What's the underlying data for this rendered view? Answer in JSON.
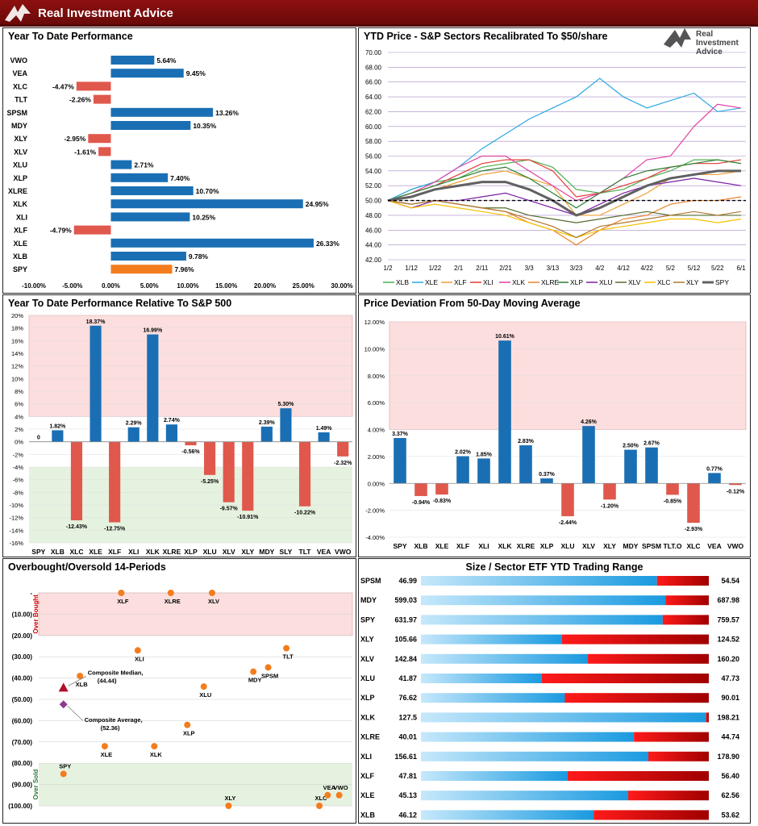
{
  "header": {
    "brand": "Real Investment Advice"
  },
  "colors": {
    "blue": "#1a6fb4",
    "red": "#e0584c",
    "orange": "#f37d1d",
    "dark_red": "#8e1010"
  },
  "watermark": {
    "line1": "Real",
    "line2": "Investment",
    "line3": "Advice"
  },
  "chart_data": [
    {
      "id": "ytd_performance",
      "type": "bar",
      "orientation": "horizontal",
      "title": "Year To Date Performance",
      "categories": [
        "VWO",
        "VEA",
        "XLC",
        "TLT",
        "SPSM",
        "MDY",
        "XLY",
        "XLV",
        "XLU",
        "XLP",
        "XLRE",
        "XLK",
        "XLI",
        "XLF",
        "XLE",
        "XLB",
        "SPY"
      ],
      "values": [
        5.64,
        9.45,
        -4.47,
        -2.26,
        13.26,
        10.35,
        -2.95,
        -1.61,
        2.71,
        7.4,
        10.7,
        24.95,
        10.25,
        -4.79,
        26.33,
        9.78,
        7.96
      ],
      "labels": [
        "5.64%",
        "9.45%",
        "-4.47%",
        "-2.26%",
        "13.26%",
        "10.35%",
        "-2.95%",
        "-1.61%",
        "2.71%",
        "7.40%",
        "10.70%",
        "24.95%",
        "10.25%",
        "-4.79%",
        "26.33%",
        "9.78%",
        "7.96%"
      ],
      "xlim": [
        -10,
        30
      ],
      "xticks": [
        "-10.00%",
        "-5.00%",
        "0.00%",
        "5.00%",
        "10.00%",
        "15.00%",
        "20.00%",
        "25.00%",
        "30.00%"
      ]
    },
    {
      "id": "ytd_price_sectors",
      "type": "line",
      "title": "YTD Price - S&P Sectors Recalibrated To $50/share",
      "x": [
        "1/2",
        "1/12",
        "1/22",
        "2/1",
        "2/11",
        "2/21",
        "3/3",
        "3/13",
        "3/23",
        "4/2",
        "4/12",
        "4/22",
        "5/2",
        "5/12",
        "5/22",
        "6/1"
      ],
      "ylim": [
        42,
        70
      ],
      "yticks": [
        "70.00",
        "68.00",
        "66.00",
        "64.00",
        "62.00",
        "60.00",
        "58.00",
        "56.00",
        "54.00",
        "52.00",
        "50.00",
        "48.00",
        "46.00",
        "44.00",
        "42.00"
      ],
      "reference_line": 50,
      "series": [
        {
          "name": "XLB",
          "color": "#4caf50",
          "values": [
            50,
            51.5,
            52.5,
            53,
            54.5,
            55,
            55.5,
            54.5,
            51.5,
            51,
            51.5,
            53,
            54,
            55.5,
            55.5,
            55
          ]
        },
        {
          "name": "XLE",
          "color": "#29a8e0",
          "values": [
            50,
            51.5,
            52.5,
            54.5,
            57,
            59,
            61,
            62.5,
            64,
            66.5,
            64,
            62.5,
            63.5,
            64.5,
            62,
            62.5
          ]
        },
        {
          "name": "XLF",
          "color": "#f0a030",
          "values": [
            50,
            50.5,
            51.5,
            52.5,
            53.5,
            54,
            53,
            52,
            48,
            48,
            49.5,
            51,
            53,
            53.5,
            53.5,
            54
          ]
        },
        {
          "name": "XLI",
          "color": "#e53935",
          "values": [
            50,
            51,
            52,
            53.5,
            55,
            55.5,
            55.5,
            54,
            50.5,
            51,
            52,
            53,
            54.5,
            55,
            55,
            55.5
          ]
        },
        {
          "name": "XLK",
          "color": "#e040a0",
          "values": [
            50,
            51,
            52.5,
            54.5,
            56,
            56,
            54,
            52,
            50,
            51,
            53,
            55.5,
            56,
            60,
            63,
            62.5
          ]
        },
        {
          "name": "XLRE",
          "color": "#e8842a",
          "values": [
            50,
            49.5,
            50,
            49.5,
            49,
            48.5,
            47,
            46,
            44,
            46,
            47.5,
            48,
            49.5,
            50,
            50,
            50.5
          ]
        },
        {
          "name": "XLP",
          "color": "#2e7d32",
          "values": [
            50,
            51,
            52,
            53,
            54,
            54.5,
            53,
            51,
            49,
            51,
            53,
            54,
            54.5,
            55,
            55.5,
            55
          ]
        },
        {
          "name": "XLU",
          "color": "#7b1fa2",
          "values": [
            50,
            49,
            50,
            50,
            50.5,
            51,
            50,
            49,
            48,
            49.5,
            51,
            52,
            52.5,
            53,
            52.5,
            52
          ]
        },
        {
          "name": "XLV",
          "color": "#556b2f",
          "values": [
            50,
            49.5,
            50,
            49.5,
            49,
            49,
            48,
            47.5,
            47,
            47.5,
            48,
            48.5,
            48,
            48,
            48,
            48
          ]
        },
        {
          "name": "XLC",
          "color": "#f5c000",
          "values": [
            50,
            49,
            49.5,
            49,
            48.5,
            48,
            47,
            46,
            45,
            46,
            46.5,
            47,
            47.5,
            47.5,
            47,
            47.5
          ]
        },
        {
          "name": "XLY",
          "color": "#b07830",
          "values": [
            50,
            49.5,
            50,
            49.5,
            49,
            48.5,
            47.5,
            46.5,
            45,
            46.5,
            47,
            47.5,
            48,
            48.5,
            48,
            48.5
          ]
        },
        {
          "name": "SPY",
          "color": "#606060",
          "values": [
            50,
            50.5,
            51.5,
            52,
            52.5,
            52.5,
            51.5,
            50,
            48,
            49,
            50.5,
            52,
            53,
            53.5,
            54,
            54
          ]
        }
      ]
    },
    {
      "id": "relative_to_sp500",
      "type": "bar",
      "title": "Year To Date Performance Relative To S&P 500",
      "categories": [
        "SPY",
        "XLB",
        "XLC",
        "XLE",
        "XLF",
        "XLI",
        "XLK",
        "XLRE",
        "XLP",
        "XLU",
        "XLV",
        "XLY",
        "MDY",
        "SLY",
        "TLT",
        "VEA",
        "VWO"
      ],
      "values": [
        0,
        1.82,
        -12.43,
        18.37,
        -12.75,
        2.29,
        16.99,
        2.74,
        -0.56,
        -5.25,
        -9.57,
        -10.91,
        2.39,
        5.3,
        -10.22,
        1.49,
        -2.32
      ],
      "labels": [
        "0",
        "1.82%",
        "-12.43%",
        "18.37%",
        "-12.75%",
        "2.29%",
        "16.99%",
        "2.74%",
        "-0.56%",
        "-5.25%",
        "-9.57%",
        "-10.91%",
        "2.39%",
        "5.30%",
        "-10.22%",
        "1.49%",
        "-2.32%"
      ],
      "ylim": [
        -16,
        20
      ],
      "yticks": [
        "20%",
        "18%",
        "16%",
        "14%",
        "12%",
        "10%",
        "8%",
        "6%",
        "4%",
        "2%",
        "0%",
        "-2%",
        "-4%",
        "-6%",
        "-8%",
        "-10%",
        "-12%",
        "-14%",
        "-16%"
      ],
      "bands": {
        "overbought_from": 4,
        "oversold_below": -4
      }
    },
    {
      "id": "deviation_50dma",
      "type": "bar",
      "title": "Price Deviation From 50-Day Moving Average",
      "categories": [
        "SPY",
        "XLB",
        "XLE",
        "XLF",
        "XLI",
        "XLK",
        "XLRE",
        "XLP",
        "XLU",
        "XLV",
        "XLY",
        "MDY",
        "SPSM",
        "TLT.O",
        "XLC",
        "VEA",
        "VWO"
      ],
      "values": [
        3.37,
        -0.94,
        -0.83,
        2.02,
        1.85,
        10.61,
        2.83,
        0.37,
        -2.44,
        4.26,
        -1.2,
        2.5,
        2.67,
        -0.85,
        -2.93,
        0.77,
        -0.12
      ],
      "labels": [
        "3.37%",
        "-0.94%",
        "-0.83%",
        "2.02%",
        "1.85%",
        "10.61%",
        "2.83%",
        "0.37%",
        "-2.44%",
        "4.26%",
        "-1.20%",
        "2.50%",
        "2.67%",
        "-0.85%",
        "-2.93%",
        "0.77%",
        "-0.12%"
      ],
      "ylim": [
        -4,
        12
      ],
      "yticks": [
        "12.00%",
        "10.00%",
        "8.00%",
        "6.00%",
        "4.00%",
        "2.00%",
        "0.00%",
        "-2.00%",
        "-4.00%"
      ],
      "bands": {
        "overbought_from": 4
      }
    },
    {
      "id": "overbought_oversold",
      "type": "scatter",
      "title": "Overbought/Oversold 14-Periods",
      "yticks": [
        "-",
        "(10.00)",
        "(20.00)",
        "(30.00)",
        "(40.00)",
        "(50.00)",
        "(60.00)",
        "(70.00)",
        "(80.00)",
        "(90.00)",
        "(100.00)"
      ],
      "ylim": [
        -100,
        0
      ],
      "band_labels": {
        "top": "Over Bought",
        "bottom": "Over Sold"
      },
      "points": [
        {
          "name": "SPY",
          "x": 1.5,
          "y": -85
        },
        {
          "name": "XLB",
          "x": 2.5,
          "y": -39
        },
        {
          "name": "XLE",
          "x": 4,
          "y": -72
        },
        {
          "name": "XLF",
          "x": 5,
          "y": 0
        },
        {
          "name": "XLI",
          "x": 6,
          "y": -27
        },
        {
          "name": "XLK",
          "x": 7,
          "y": -72
        },
        {
          "name": "XLRE",
          "x": 8,
          "y": 0
        },
        {
          "name": "XLP",
          "x": 9,
          "y": -62
        },
        {
          "name": "XLU",
          "x": 10,
          "y": -44
        },
        {
          "name": "XLV",
          "x": 10.5,
          "y": 0
        },
        {
          "name": "XLY",
          "x": 11.5,
          "y": -100
        },
        {
          "name": "MDY",
          "x": 13,
          "y": -37
        },
        {
          "name": "SPSM",
          "x": 13.9,
          "y": -35
        },
        {
          "name": "TLT",
          "x": 15,
          "y": -26
        },
        {
          "name": "XLC",
          "x": 17,
          "y": -100
        },
        {
          "name": "VEA",
          "x": 17.5,
          "y": -95
        },
        {
          "name": "VWO",
          "x": 18.2,
          "y": -95
        }
      ],
      "median": {
        "label": "Composite Median,",
        "value_label": "(44.44)",
        "x": 1.5,
        "y": -44.44
      },
      "average": {
        "label": "Composite Average,",
        "value_label": "(52.36)",
        "x": 1.5,
        "y": -52.36
      }
    },
    {
      "id": "trading_range",
      "type": "bar",
      "title": "Size / Sector ETF YTD Trading Range",
      "rows": [
        {
          "name": "SPSM",
          "low": "46.99",
          "high": "54.54",
          "position": 0.82
        },
        {
          "name": "MDY",
          "low": "599.03",
          "high": "687.98",
          "position": 0.85
        },
        {
          "name": "SPY",
          "low": "631.97",
          "high": "759.57",
          "position": 0.84
        },
        {
          "name": "XLY",
          "low": "105.66",
          "high": "124.52",
          "position": 0.49
        },
        {
          "name": "XLV",
          "low": "142.84",
          "high": "160.20",
          "position": 0.58
        },
        {
          "name": "XLU",
          "low": "41.87",
          "high": "47.73",
          "position": 0.42
        },
        {
          "name": "XLP",
          "low": "76.62",
          "high": "90.01",
          "position": 0.5
        },
        {
          "name": "XLK",
          "low": "127.5",
          "high": "198.21",
          "position": 0.99
        },
        {
          "name": "XLRE",
          "low": "40.01",
          "high": "44.74",
          "position": 0.74
        },
        {
          "name": "XLI",
          "low": "156.61",
          "high": "178.90",
          "position": 0.79
        },
        {
          "name": "XLF",
          "low": "47.81",
          "high": "56.40",
          "position": 0.51
        },
        {
          "name": "XLE",
          "low": "45.13",
          "high": "62.56",
          "position": 0.72
        },
        {
          "name": "XLB",
          "low": "46.12",
          "high": "53.62",
          "position": 0.6
        }
      ]
    }
  ]
}
